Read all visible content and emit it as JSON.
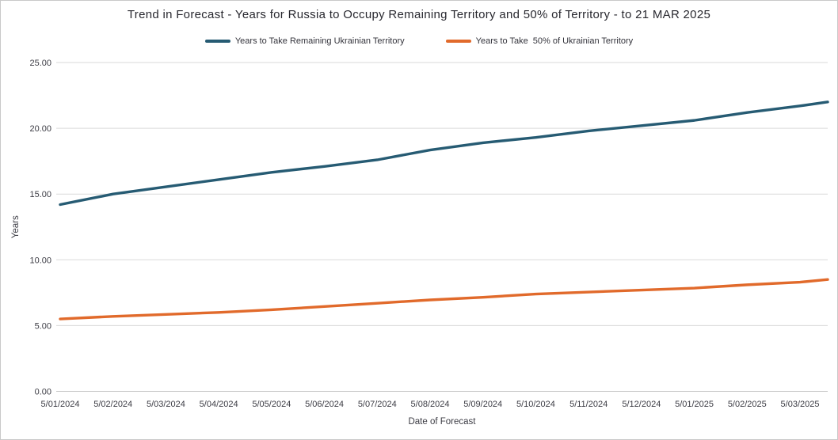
{
  "title": "Trend in Forecast - Years for Russia to Occupy Remaining Territory and 50% of Territory - to 21 MAR 2025",
  "chart_data": {
    "type": "line",
    "title": "Trend in Forecast - Years for Russia to Occupy Remaining Territory and 50% of Territory - to 21 MAR 2025",
    "xlabel": "Date of Forecast",
    "ylabel": "Years",
    "ylim": [
      0,
      25
    ],
    "y_ticks": [
      0,
      5,
      10,
      15,
      20,
      25
    ],
    "y_tick_labels": [
      "0.00",
      "5.00",
      "10.00",
      "15.00",
      "20.00",
      "25.00"
    ],
    "grid": "horizontal",
    "legend_position": "top-center",
    "end_date_label": "21 MAR 2025",
    "categories": [
      "5/01/2024",
      "5/02/2024",
      "5/03/2024",
      "5/04/2024",
      "5/05/2024",
      "5/06/2024",
      "5/07/2024",
      "5/08/2024",
      "5/09/2024",
      "5/10/2024",
      "5/11/2024",
      "5/12/2024",
      "5/01/2025",
      "5/02/2025",
      "5/03/2025"
    ],
    "series": [
      {
        "name": "Years to Take Remaining Ukrainian Territory",
        "color": "#265b73",
        "values": [
          14.2,
          15.0,
          15.55,
          16.1,
          16.65,
          17.1,
          17.6,
          18.35,
          18.9,
          19.3,
          19.8,
          20.2,
          20.6,
          21.2,
          21.7
        ],
        "end_value": 22.0
      },
      {
        "name": "Years to Take  50% of Ukrainian Territory",
        "color": "#e16a2b",
        "values": [
          5.5,
          5.7,
          5.85,
          6.0,
          6.2,
          6.45,
          6.7,
          6.95,
          7.15,
          7.4,
          7.55,
          7.7,
          7.85,
          8.1,
          8.3
        ],
        "end_value": 8.5
      }
    ]
  },
  "colors": {
    "gridline": "#d9d9d9",
    "baseline": "#c6c6c6",
    "axis_text": "#3c3c44",
    "title_text": "#28282f",
    "frame_border": "#c9c9c9"
  }
}
